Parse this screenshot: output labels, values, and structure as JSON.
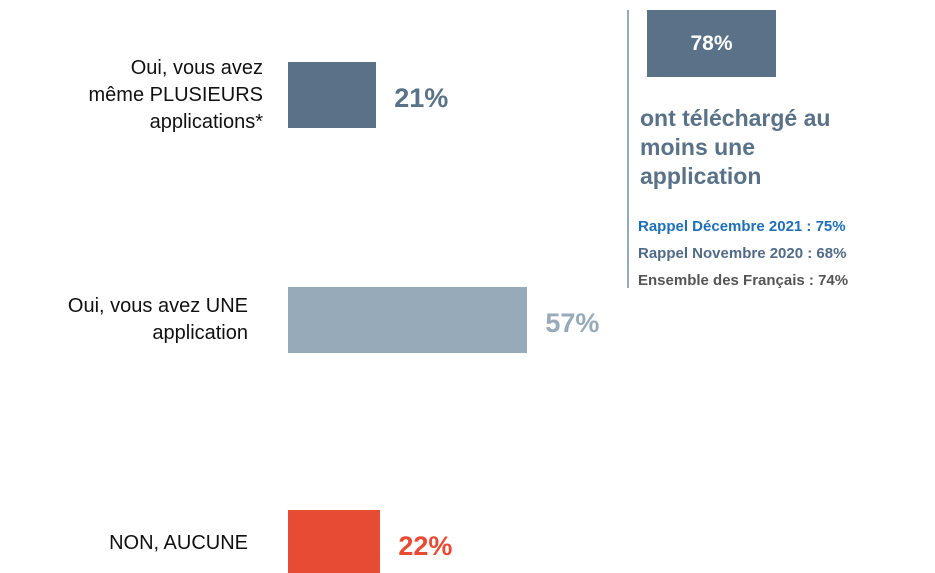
{
  "chart_data": {
    "type": "bar",
    "orientation": "horizontal",
    "categories": [
      "Oui, vous avez même PLUSIEURS applications*",
      "Oui, vous avez UNE application",
      "NON, AUCUNE"
    ],
    "values": [
      21,
      57,
      22
    ],
    "value_labels": [
      "21%",
      "57%",
      "22%"
    ],
    "colors": [
      "#5a7288",
      "#97aab9",
      "#e84b33"
    ],
    "xlim": [
      0,
      100
    ],
    "callout": {
      "value_label": "78%",
      "text": "ont téléchargé au moins une application",
      "notes": [
        {
          "text": "Rappel Décembre 2021 : 75%",
          "color": "#1f6fb8"
        },
        {
          "text": "Rappel Novembre 2020 : 68%",
          "color": "#4f6b88"
        },
        {
          "text": "Ensemble des Français : 74%",
          "color": "#555555"
        }
      ],
      "color": "#5a7288"
    }
  }
}
